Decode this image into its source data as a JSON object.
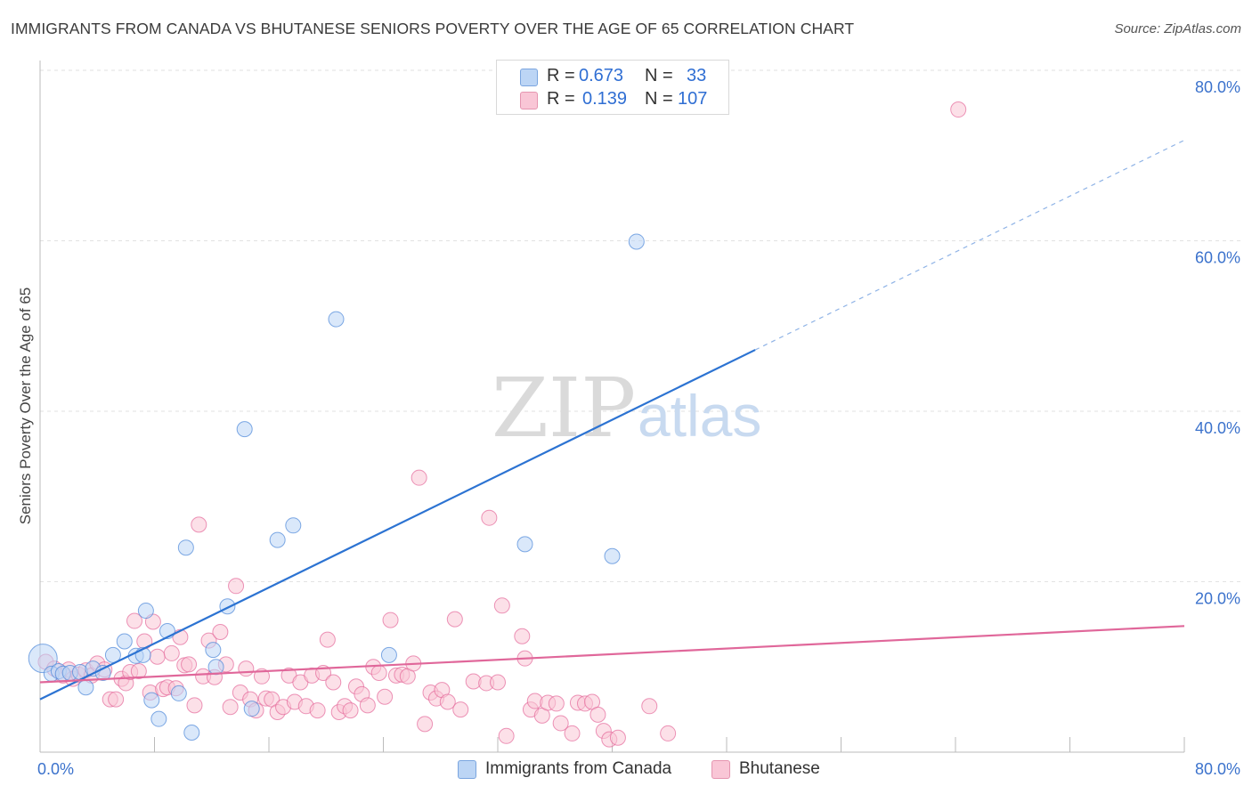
{
  "title": "IMMIGRANTS FROM CANADA VS BHUTANESE SENIORS POVERTY OVER THE AGE OF 65 CORRELATION CHART",
  "source": "Source: ZipAtlas.com",
  "watermark": {
    "zip": "ZIP",
    "atlas": "atlas"
  },
  "stats_legend": [
    {
      "r_label": "R =",
      "r_value": "0.673",
      "n_label": "N =",
      "n_value": "33",
      "color": "#bcd5f5"
    },
    {
      "r_label": "R =",
      "r_value": "0.139",
      "n_label": "N =",
      "n_value": "107",
      "color": "#f9c6d6"
    }
  ],
  "chart_data": {
    "type": "scatter",
    "title": "IMMIGRANTS FROM CANADA VS BHUTANESE SENIORS POVERTY OVER THE AGE OF 65 CORRELATION CHART",
    "xlabel": "",
    "ylabel": "Seniors Poverty Over the Age of 65",
    "xlim": [
      0,
      80
    ],
    "ylim": [
      0,
      80
    ],
    "x_tick_labels": [
      {
        "value": 0,
        "label": "0.0%"
      },
      {
        "value": 80,
        "label": "80.0%"
      }
    ],
    "y_tick_labels": [
      {
        "value": 20,
        "label": "20.0%"
      },
      {
        "value": 40,
        "label": "40.0%"
      },
      {
        "value": 60,
        "label": "60.0%"
      },
      {
        "value": 80,
        "label": "80.0%"
      }
    ],
    "grid": true,
    "legend_position": "bottom",
    "series": [
      {
        "name": "Immigrants from Canada",
        "color": "#4a86d8",
        "fill": "#bcd5f5",
        "trend": {
          "x": [
            0,
            50
          ],
          "y": [
            6.2,
            47.2
          ],
          "dashed_to": [
            80,
            71.8
          ]
        },
        "points": [
          {
            "x": 0.2,
            "y": 11.0,
            "big": true
          },
          {
            "x": 0.8,
            "y": 9.2
          },
          {
            "x": 1.3,
            "y": 9.5
          },
          {
            "x": 1.6,
            "y": 9.2
          },
          {
            "x": 2.1,
            "y": 9.3
          },
          {
            "x": 2.8,
            "y": 9.4
          },
          {
            "x": 3.2,
            "y": 7.6
          },
          {
            "x": 3.7,
            "y": 9.8
          },
          {
            "x": 4.4,
            "y": 9.3
          },
          {
            "x": 5.1,
            "y": 11.4
          },
          {
            "x": 5.9,
            "y": 13.0
          },
          {
            "x": 6.7,
            "y": 11.3
          },
          {
            "x": 7.2,
            "y": 11.4
          },
          {
            "x": 7.4,
            "y": 16.6
          },
          {
            "x": 7.8,
            "y": 6.1
          },
          {
            "x": 8.3,
            "y": 3.9
          },
          {
            "x": 8.9,
            "y": 14.2
          },
          {
            "x": 9.7,
            "y": 6.9
          },
          {
            "x": 10.2,
            "y": 24.0
          },
          {
            "x": 10.6,
            "y": 2.3
          },
          {
            "x": 12.1,
            "y": 12.0
          },
          {
            "x": 12.3,
            "y": 10.0
          },
          {
            "x": 13.1,
            "y": 17.1
          },
          {
            "x": 14.3,
            "y": 37.9
          },
          {
            "x": 14.8,
            "y": 5.1
          },
          {
            "x": 16.6,
            "y": 24.9
          },
          {
            "x": 17.7,
            "y": 26.6
          },
          {
            "x": 20.7,
            "y": 50.8
          },
          {
            "x": 24.4,
            "y": 11.4
          },
          {
            "x": 33.9,
            "y": 24.4
          },
          {
            "x": 40.0,
            "y": 23.0
          },
          {
            "x": 41.7,
            "y": 59.9
          }
        ]
      },
      {
        "name": "Bhutanese",
        "color": "#e4689a",
        "fill": "#f9c6d6",
        "trend": {
          "x": [
            0,
            80
          ],
          "y": [
            8.2,
            14.8
          ]
        },
        "points": [
          {
            "x": 0.4,
            "y": 10.6
          },
          {
            "x": 1.0,
            "y": 9.8
          },
          {
            "x": 1.6,
            "y": 9.0
          },
          {
            "x": 2.0,
            "y": 9.7
          },
          {
            "x": 2.3,
            "y": 8.6
          },
          {
            "x": 2.7,
            "y": 9.1
          },
          {
            "x": 3.2,
            "y": 9.6
          },
          {
            "x": 3.6,
            "y": 9.0
          },
          {
            "x": 4.0,
            "y": 10.4
          },
          {
            "x": 4.5,
            "y": 9.7
          },
          {
            "x": 4.9,
            "y": 6.2
          },
          {
            "x": 5.3,
            "y": 6.2
          },
          {
            "x": 5.7,
            "y": 8.6
          },
          {
            "x": 6.0,
            "y": 8.1
          },
          {
            "x": 6.3,
            "y": 9.4
          },
          {
            "x": 6.6,
            "y": 15.4
          },
          {
            "x": 6.9,
            "y": 9.5
          },
          {
            "x": 7.3,
            "y": 13.0
          },
          {
            "x": 7.7,
            "y": 7.0
          },
          {
            "x": 7.9,
            "y": 15.3
          },
          {
            "x": 8.2,
            "y": 11.2
          },
          {
            "x": 8.6,
            "y": 7.4
          },
          {
            "x": 8.9,
            "y": 7.6
          },
          {
            "x": 9.2,
            "y": 11.6
          },
          {
            "x": 9.5,
            "y": 7.5
          },
          {
            "x": 9.8,
            "y": 13.5
          },
          {
            "x": 10.1,
            "y": 10.2
          },
          {
            "x": 10.4,
            "y": 10.3
          },
          {
            "x": 10.8,
            "y": 5.5
          },
          {
            "x": 11.1,
            "y": 26.7
          },
          {
            "x": 11.4,
            "y": 8.9
          },
          {
            "x": 11.8,
            "y": 13.1
          },
          {
            "x": 12.2,
            "y": 8.8
          },
          {
            "x": 12.6,
            "y": 14.1
          },
          {
            "x": 13.0,
            "y": 10.3
          },
          {
            "x": 13.3,
            "y": 5.3
          },
          {
            "x": 13.7,
            "y": 19.5
          },
          {
            "x": 14.0,
            "y": 7.0
          },
          {
            "x": 14.4,
            "y": 9.8
          },
          {
            "x": 14.7,
            "y": 6.2
          },
          {
            "x": 15.1,
            "y": 4.9
          },
          {
            "x": 15.5,
            "y": 8.9
          },
          {
            "x": 15.8,
            "y": 6.3
          },
          {
            "x": 16.2,
            "y": 6.2
          },
          {
            "x": 16.6,
            "y": 4.7
          },
          {
            "x": 17.0,
            "y": 5.3
          },
          {
            "x": 17.4,
            "y": 9.0
          },
          {
            "x": 17.8,
            "y": 5.9
          },
          {
            "x": 18.2,
            "y": 8.2
          },
          {
            "x": 18.6,
            "y": 5.4
          },
          {
            "x": 19.0,
            "y": 9.0
          },
          {
            "x": 19.4,
            "y": 4.9
          },
          {
            "x": 19.8,
            "y": 9.3
          },
          {
            "x": 20.1,
            "y": 13.2
          },
          {
            "x": 20.5,
            "y": 8.2
          },
          {
            "x": 20.9,
            "y": 4.7
          },
          {
            "x": 21.3,
            "y": 5.4
          },
          {
            "x": 21.7,
            "y": 4.9
          },
          {
            "x": 22.1,
            "y": 7.7
          },
          {
            "x": 22.5,
            "y": 6.8
          },
          {
            "x": 22.9,
            "y": 5.5
          },
          {
            "x": 23.3,
            "y": 10.0
          },
          {
            "x": 23.7,
            "y": 9.3
          },
          {
            "x": 24.1,
            "y": 6.5
          },
          {
            "x": 24.5,
            "y": 15.5
          },
          {
            "x": 24.9,
            "y": 9.0
          },
          {
            "x": 25.3,
            "y": 9.1
          },
          {
            "x": 25.7,
            "y": 8.9
          },
          {
            "x": 26.1,
            "y": 10.4
          },
          {
            "x": 26.5,
            "y": 32.2
          },
          {
            "x": 26.9,
            "y": 3.3
          },
          {
            "x": 27.3,
            "y": 7.0
          },
          {
            "x": 27.7,
            "y": 6.3
          },
          {
            "x": 28.1,
            "y": 7.3
          },
          {
            "x": 28.5,
            "y": 5.9
          },
          {
            "x": 29.0,
            "y": 15.6
          },
          {
            "x": 29.4,
            "y": 5.0
          },
          {
            "x": 30.3,
            "y": 8.3
          },
          {
            "x": 31.2,
            "y": 8.1
          },
          {
            "x": 31.4,
            "y": 27.5
          },
          {
            "x": 32.0,
            "y": 8.2
          },
          {
            "x": 32.3,
            "y": 17.2
          },
          {
            "x": 32.6,
            "y": 1.9
          },
          {
            "x": 33.7,
            "y": 13.6
          },
          {
            "x": 33.9,
            "y": 11.0
          },
          {
            "x": 34.3,
            "y": 5.0
          },
          {
            "x": 34.6,
            "y": 6.0
          },
          {
            "x": 35.1,
            "y": 4.3
          },
          {
            "x": 35.5,
            "y": 5.8
          },
          {
            "x": 36.1,
            "y": 5.7
          },
          {
            "x": 36.4,
            "y": 3.4
          },
          {
            "x": 37.2,
            "y": 2.2
          },
          {
            "x": 37.6,
            "y": 5.8
          },
          {
            "x": 38.1,
            "y": 5.7
          },
          {
            "x": 38.6,
            "y": 5.9
          },
          {
            "x": 39.0,
            "y": 4.4
          },
          {
            "x": 39.4,
            "y": 2.5
          },
          {
            "x": 39.8,
            "y": 1.5
          },
          {
            "x": 40.4,
            "y": 1.7
          },
          {
            "x": 42.6,
            "y": 5.4
          },
          {
            "x": 43.9,
            "y": 2.2
          },
          {
            "x": 64.2,
            "y": 75.4
          }
        ]
      }
    ]
  }
}
